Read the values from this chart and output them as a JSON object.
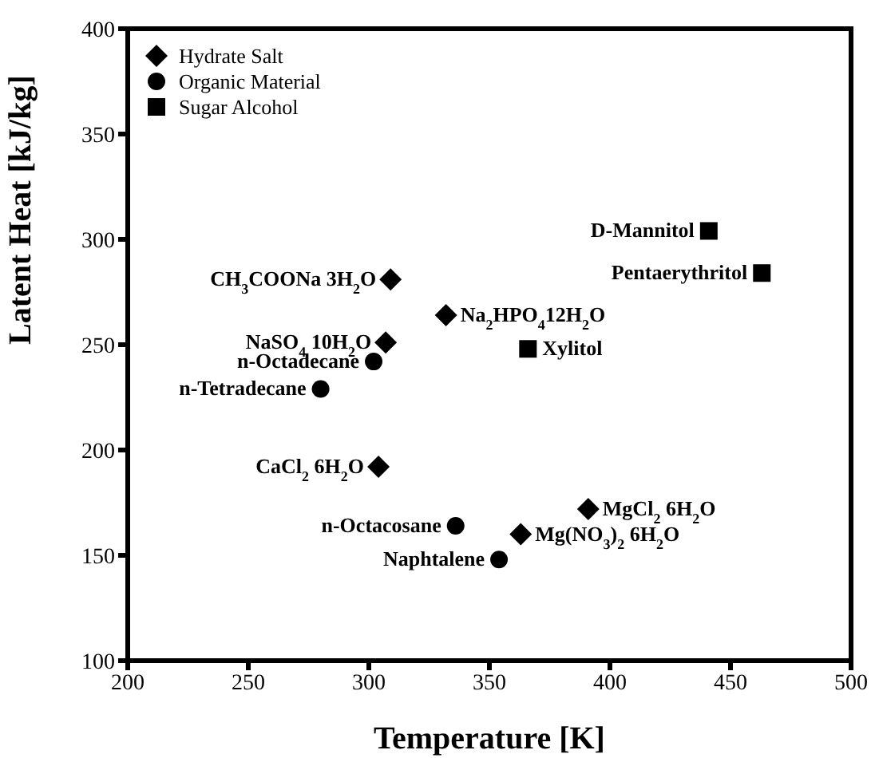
{
  "chart_data": {
    "type": "scatter",
    "xlabel": "Temperature [K]",
    "ylabel": "Latent Heat [kJ/kg]",
    "xlim": [
      200,
      500
    ],
    "xticks": [
      200,
      250,
      300,
      350,
      400,
      450,
      500
    ],
    "ylim": [
      100,
      400
    ],
    "yticks": [
      100,
      150,
      200,
      250,
      300,
      350,
      400
    ],
    "grid": false,
    "legend": "top left",
    "series": [
      {
        "name": "Hydrate Salt",
        "color": "#000000",
        "marker": "diamond",
        "x": [
          309,
          332,
          307,
          304,
          363,
          391
        ],
        "values": [
          281,
          264,
          251,
          192,
          160,
          172
        ]
      },
      {
        "name": "Organic Material",
        "color": "#000000",
        "marker": "circle",
        "x": [
          302,
          280,
          336,
          354
        ],
        "values": [
          242,
          229,
          164,
          148
        ]
      },
      {
        "name": "Sugar Alcohol",
        "color": "#000000",
        "marker": "square",
        "x": [
          366,
          441,
          463
        ],
        "values": [
          248,
          304,
          284
        ]
      }
    ],
    "annotations": [
      {
        "text": "CH$_{3}$COONa 3H$_{2}$O",
        "x": 309,
        "y": 281
      },
      {
        "text": "Na$_{2}$HPO$_{4}$12H$_{2}$O",
        "x": 332,
        "y": 264
      },
      {
        "text": "NaSO$_{4}$ 10H$_{2}$O",
        "x": 307,
        "y": 251
      },
      {
        "text": "CaCl$_{2}$ 6H$_{2}$O",
        "x": 304,
        "y": 192
      },
      {
        "text": "Mg(NO$_{3}$)$_{2}$ 6H$_{2}$O",
        "x": 363,
        "y": 160
      },
      {
        "text": "MgCl$_{2}$ 6H$_{2}$O",
        "x": 391,
        "y": 172
      },
      {
        "text": "n-Octadecane",
        "x": 302,
        "y": 242
      },
      {
        "text": "n-Tetradecane",
        "x": 280,
        "y": 229
      },
      {
        "text": "n-Octacosane",
        "x": 336,
        "y": 164
      },
      {
        "text": "Naphtalene",
        "x": 354,
        "y": 148
      },
      {
        "text": "Xylitol",
        "x": 366,
        "y": 248
      },
      {
        "text": "D-Mannitol",
        "x": 441,
        "y": 304
      },
      {
        "text": "Pentaerythritol",
        "x": 463,
        "y": 284
      }
    ]
  }
}
